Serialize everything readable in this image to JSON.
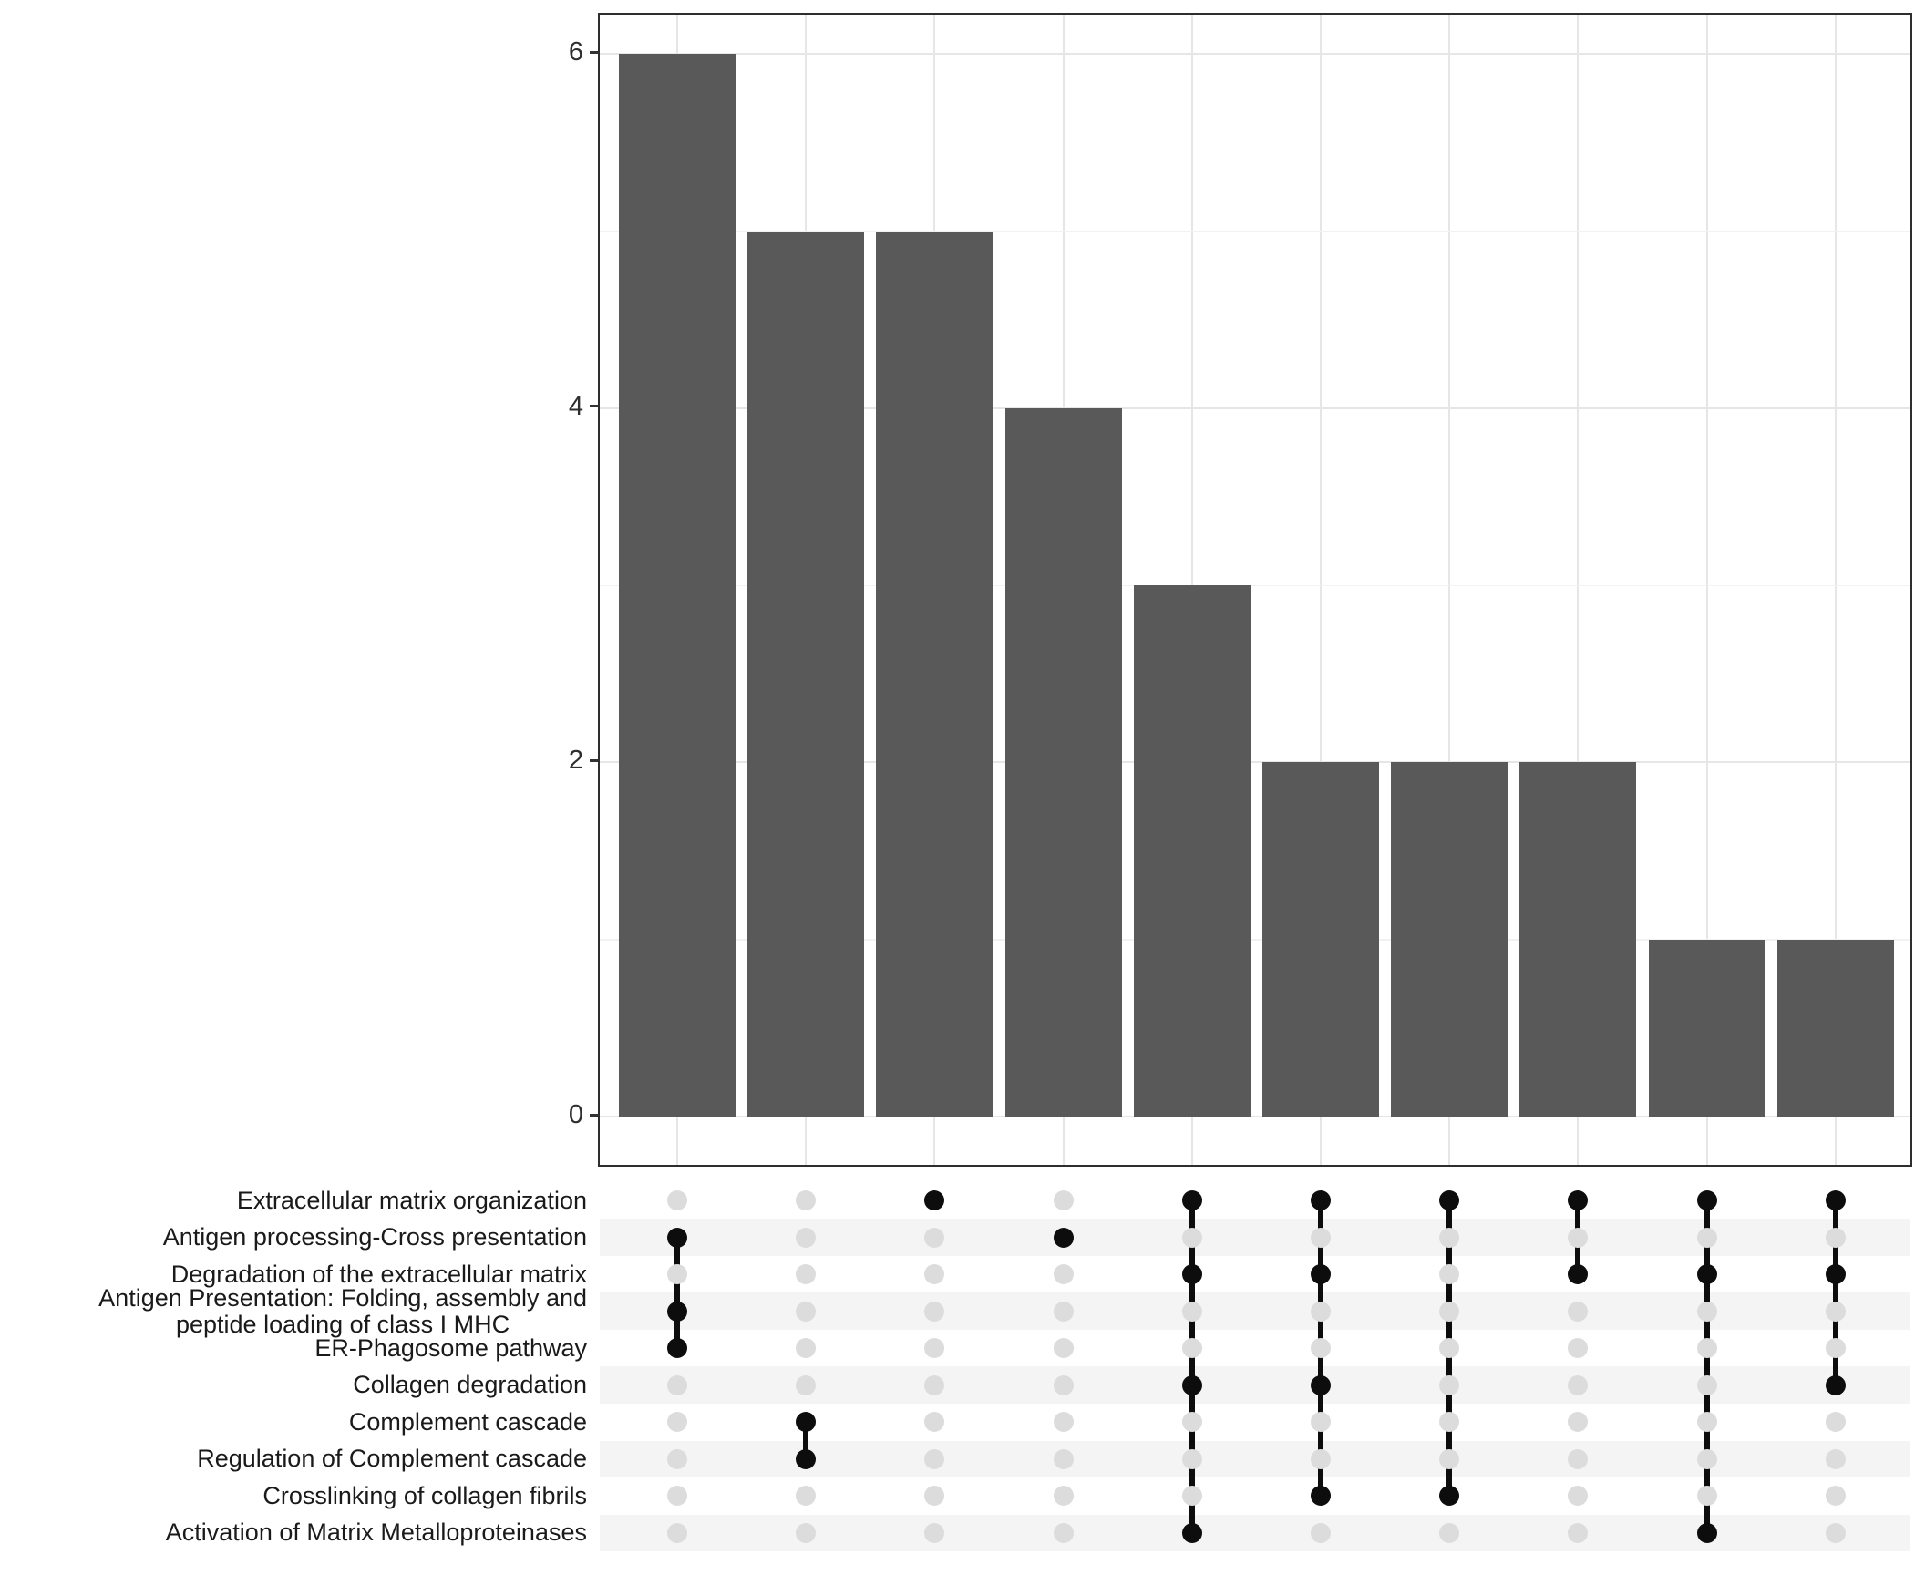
{
  "chart_data": {
    "type": "bar",
    "subtype": "upset",
    "title": "",
    "xlabel": "",
    "ylabel": "",
    "y_ticks": [
      0,
      2,
      4,
      6
    ],
    "ylim": [
      0,
      6.3
    ],
    "grid": true,
    "sets": [
      {
        "label": "Extracellular matrix organization"
      },
      {
        "label": "Antigen processing-Cross presentation"
      },
      {
        "label": "Degradation of the extracellular matrix"
      },
      {
        "label": "Antigen Presentation: Folding, assembly and peptide loading of class I MHC",
        "lines": [
          "Antigen Presentation: Folding, assembly and",
          "peptide loading of class I MHC"
        ]
      },
      {
        "label": "ER-Phagosome pathway"
      },
      {
        "label": "Collagen degradation"
      },
      {
        "label": "Complement cascade"
      },
      {
        "label": "Regulation of Complement cascade"
      },
      {
        "label": "Crosslinking of collagen fibrils"
      },
      {
        "label": "Activation of Matrix Metalloproteinases"
      }
    ],
    "intersections": [
      {
        "size": 6,
        "members": [
          1,
          3,
          4
        ]
      },
      {
        "size": 5,
        "members": [
          6,
          7
        ]
      },
      {
        "size": 5,
        "members": [
          0
        ]
      },
      {
        "size": 4,
        "members": [
          1
        ]
      },
      {
        "size": 3,
        "members": [
          0,
          2,
          5,
          9
        ]
      },
      {
        "size": 2,
        "members": [
          0,
          2,
          5,
          8
        ]
      },
      {
        "size": 2,
        "members": [
          0,
          8
        ]
      },
      {
        "size": 2,
        "members": [
          0,
          2
        ]
      },
      {
        "size": 1,
        "members": [
          0,
          2,
          9
        ]
      },
      {
        "size": 1,
        "members": [
          0,
          2,
          5
        ]
      }
    ]
  },
  "colors": {
    "bar": "#595959",
    "dot_empty": "#dcdcdc",
    "dot_filled": "#0d0d0d",
    "connector": "#0d0d0d",
    "grid_major": "#e6e6e6",
    "grid_minor": "#f2f2f2",
    "stripe": "#f4f4f4",
    "panel_border": "#2e2e2e",
    "tick": "#333333",
    "text": "#1a1a1a"
  }
}
